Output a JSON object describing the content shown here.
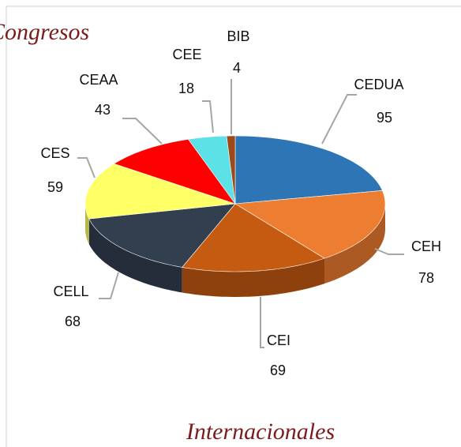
{
  "chart_data": {
    "type": "pie",
    "title": "Congresos",
    "subtitle": "Internacionales",
    "categories": [
      "CEDUA",
      "CEH",
      "CEI",
      "CELL",
      "CES",
      "CEAA",
      "CEE",
      "BIB"
    ],
    "values": [
      95,
      78,
      69,
      68,
      59,
      43,
      18,
      4
    ],
    "colors": [
      "#2e75b6",
      "#ed7d31",
      "#c55a11",
      "#323f4f",
      "#ffff66",
      "#ff0000",
      "#5ce1e6",
      "#9c4a1a"
    ]
  }
}
